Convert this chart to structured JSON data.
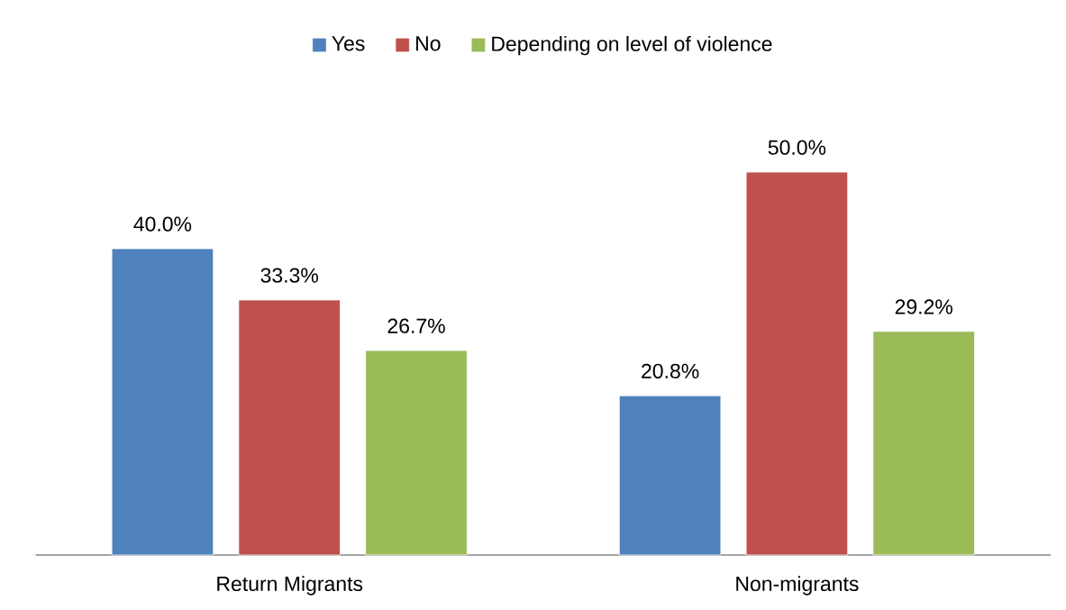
{
  "chart_data": {
    "type": "bar",
    "categories": [
      "Return Migrants",
      "Non-migrants"
    ],
    "series": [
      {
        "name": "Yes",
        "color": "#4f81bd",
        "values": [
          40.0,
          20.8
        ],
        "value_labels": [
          "40.0%",
          "20.8%"
        ]
      },
      {
        "name": "No",
        "color": "#c0504d",
        "values": [
          33.3,
          50.0
        ],
        "value_labels": [
          "33.3%",
          "50.0%"
        ]
      },
      {
        "name": "Depending on level of violence",
        "color": "#9bbb59",
        "values": [
          26.7,
          29.2
        ],
        "value_labels": [
          "26.7%",
          "29.2%"
        ]
      }
    ],
    "legend": "top"
  }
}
